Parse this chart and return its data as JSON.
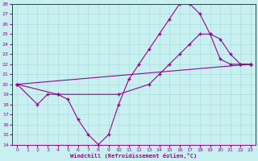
{
  "xlabel": "Windchill (Refroidissement éolien,°C)",
  "bg_color": "#c8f0f0",
  "line_color": "#990099",
  "grid_color": "#aadddd",
  "xlim": [
    -0.5,
    23.5
  ],
  "ylim": [
    14,
    28
  ],
  "xticks": [
    0,
    1,
    2,
    3,
    4,
    5,
    6,
    7,
    8,
    9,
    10,
    11,
    12,
    13,
    14,
    15,
    16,
    17,
    18,
    19,
    20,
    21,
    22,
    23
  ],
  "yticks": [
    14,
    15,
    16,
    17,
    18,
    19,
    20,
    21,
    22,
    23,
    24,
    25,
    26,
    27,
    28
  ],
  "series1_x": [
    0,
    2,
    3,
    4,
    5,
    6,
    7,
    8,
    9,
    10,
    11,
    12,
    13,
    14,
    15,
    16,
    17,
    18,
    19,
    20,
    21,
    22,
    23
  ],
  "series1_y": [
    20,
    18,
    19,
    19,
    18.5,
    16.5,
    15,
    14,
    15,
    18,
    20.5,
    22,
    23.5,
    25,
    26.5,
    28,
    28,
    27,
    25,
    22.5,
    22,
    22,
    22
  ],
  "series2_x": [
    0,
    23
  ],
  "series2_y": [
    20,
    22
  ],
  "series3_x": [
    0,
    4,
    10,
    13,
    14,
    15,
    16,
    17,
    18,
    19,
    20,
    21,
    22,
    23
  ],
  "series3_y": [
    20,
    19,
    19,
    20,
    21,
    22,
    23,
    24,
    25,
    25,
    24.5,
    23,
    22,
    22
  ]
}
